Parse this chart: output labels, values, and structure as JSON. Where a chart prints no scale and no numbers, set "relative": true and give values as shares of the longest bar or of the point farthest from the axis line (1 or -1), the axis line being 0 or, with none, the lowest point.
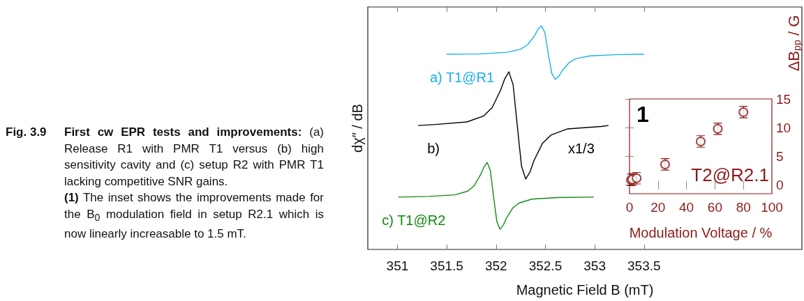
{
  "chart_data": [
    {
      "type": "line",
      "relative": true,
      "xlabel": "Magnetic Field B (mT)",
      "ylabel": "dχ″ / dB",
      "xlim": [
        350.7,
        355.1
      ],
      "xticks": [
        351,
        351.5,
        352,
        352.5,
        353,
        353.5
      ],
      "tick_labels": "x",
      "grid": false,
      "legend": false,
      "series": [
        {
          "name": "a) T1@R1",
          "color": "#1ab0e8",
          "x": [
            351.5,
            351.83,
            352.11,
            352.25,
            352.32,
            352.39,
            352.425,
            352.46,
            352.495,
            352.53,
            352.565,
            352.6,
            352.635,
            352.67,
            352.74,
            352.81,
            352.95,
            353.23,
            353.5
          ],
          "values": [
            0.873,
            0.874,
            0.881,
            0.895,
            0.915,
            0.955,
            0.984,
            1.0,
            0.969,
            0.873,
            0.787,
            0.76,
            0.774,
            0.799,
            0.835,
            0.853,
            0.865,
            0.871,
            0.873
          ]
        },
        {
          "name": "b)",
          "color": "#000000",
          "x": [
            351.21,
            351.365,
            351.705,
            351.875,
            351.96,
            352.045,
            352.088,
            352.13,
            352.173,
            352.215,
            352.258,
            352.3,
            352.343,
            352.385,
            352.47,
            352.555,
            352.725,
            353.065,
            353.14
          ],
          "values": [
            0.554,
            0.558,
            0.57,
            0.597,
            0.634,
            0.711,
            0.763,
            0.794,
            0.736,
            0.554,
            0.372,
            0.315,
            0.345,
            0.398,
            0.474,
            0.511,
            0.539,
            0.55,
            0.554
          ]
        },
        {
          "name": "c) T1@R2",
          "color": "#138a13",
          "x": [
            351.01,
            351.325,
            351.585,
            351.715,
            351.78,
            351.845,
            351.878,
            351.91,
            351.943,
            351.975,
            352.008,
            352.04,
            352.073,
            352.105,
            352.17,
            352.235,
            352.365,
            352.625,
            352.99
          ],
          "values": [
            0.234,
            0.237,
            0.244,
            0.261,
            0.286,
            0.336,
            0.369,
            0.389,
            0.351,
            0.234,
            0.125,
            0.09,
            0.108,
            0.14,
            0.186,
            0.208,
            0.225,
            0.232,
            0.234
          ]
        }
      ],
      "annotations": [
        "x1/3",
        "Fig. 3.9",
        "First cw EPR tests and improvements:",
        "(a) Release R1 with PMR T1 versus (b) high sensitivity cavity and (c) setup R2 with PMR T1 lacking competitive SNR gains.",
        "(1)",
        "The inset shows the improvements made for the B$_{0}$ modulation field in setup R2.1 which is now linearly increasable to 1.5 mT."
      ]
    },
    {
      "type": "scatter",
      "xlabel": "Modulation Voltage / %",
      "ylabel": "ΔB$_{pp}$ / G",
      "color": "#8b1a1a",
      "marker": "circle",
      "grid": false,
      "x": [
        1,
        2,
        5,
        25,
        50,
        62,
        80
      ],
      "values": [
        0.9,
        1.0,
        1.2,
        3.6,
        7.6,
        9.8,
        12.7
      ],
      "errors": [
        1,
        1,
        1,
        1,
        1,
        1,
        1
      ],
      "xlim": [
        0,
        100
      ],
      "xticks": [
        0,
        20,
        40,
        60,
        80,
        100
      ],
      "ylim": [
        -1.5,
        15
      ],
      "yticks": [
        0,
        5,
        10,
        15
      ],
      "annotations": [
        "1",
        "T2@R2.1"
      ]
    }
  ]
}
